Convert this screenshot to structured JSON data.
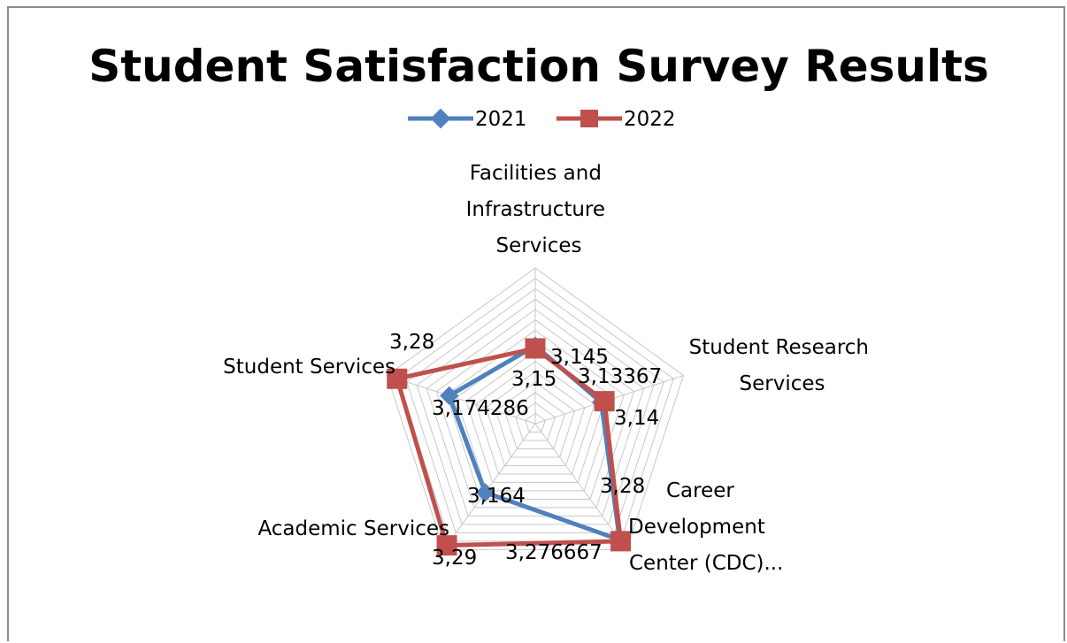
{
  "chart_data": {
    "type": "radar",
    "title": "Student Satisfaction Survey Results",
    "categories": [
      [
        "Facilities and",
        "Infrastructure",
        "Services"
      ],
      [
        "Student Research",
        "Services"
      ],
      [
        "Career",
        "Development",
        "Center (CDC)..."
      ],
      [
        "Academic Services"
      ],
      [
        "Student Services"
      ]
    ],
    "series": [
      {
        "name": "2021",
        "values": [
          3.15,
          3.13367,
          3.276667,
          3.164,
          3.174286
        ],
        "labels": [
          "3,15",
          "3,13367",
          "3,276667",
          "3,164",
          "3,174286"
        ],
        "color": "#4f81bd",
        "marker": "diamond"
      },
      {
        "name": "2022",
        "values": [
          3.145,
          3.14,
          3.28,
          3.29,
          3.28
        ],
        "labels": [
          "3,145",
          "3,14",
          "3,28",
          "3,29",
          "3,28"
        ],
        "color": "#c0504d",
        "marker": "square"
      }
    ],
    "rlim": [
      3.0,
      3.3
    ],
    "rings": 15,
    "legend": "top"
  }
}
